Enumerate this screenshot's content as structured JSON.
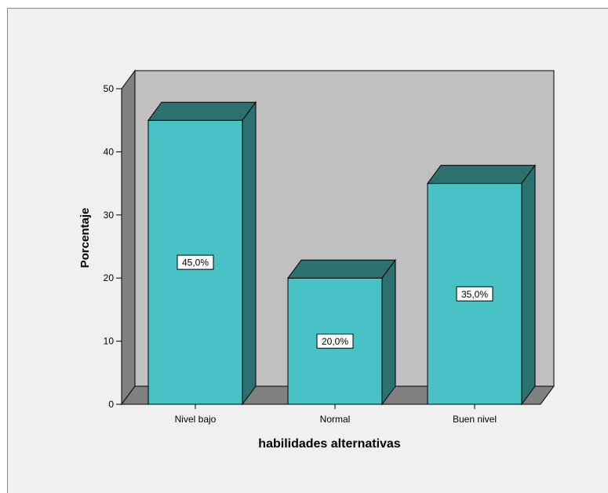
{
  "chart_data": {
    "type": "bar",
    "categories": [
      "Nivel bajo",
      "Normal",
      "Buen nivel"
    ],
    "values": [
      45.0,
      20.0,
      35.0
    ],
    "data_labels": [
      "45,0%",
      "20,0%",
      "35,0%"
    ],
    "xlabel": "habilidades alternativas",
    "ylabel": "Porcentaje",
    "ylim": [
      0,
      50
    ],
    "yticks": [
      0,
      10,
      20,
      30,
      40,
      50
    ],
    "grid": false,
    "three_d": true,
    "colors": {
      "bar_front": "#48c2c5",
      "bar_top": "#2c7070",
      "bar_side": "#2c7070",
      "back_wall": "#c0c0c0",
      "side_wall": "#808080",
      "floor": "#808080",
      "frame_background": "#f0f0f0"
    }
  }
}
